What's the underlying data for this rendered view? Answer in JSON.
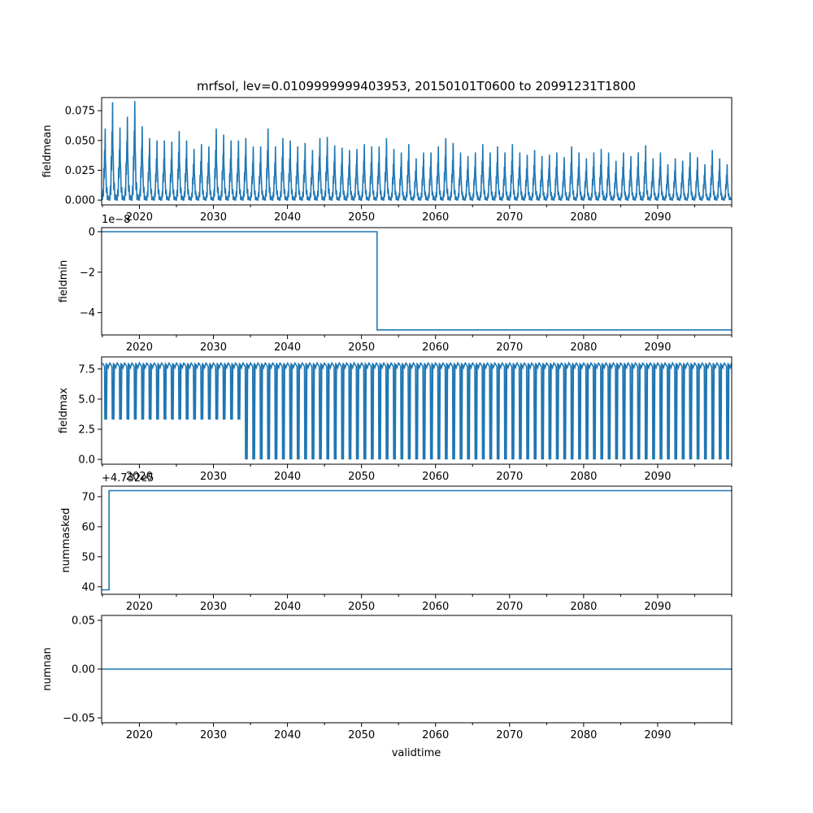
{
  "figure": {
    "title": "mrfsol, lev=0.0109999999403953, 20150101T0600 to 20991231T1800",
    "xlabel": "validtime",
    "line_color": "#1f77b4"
  },
  "chart_data": [
    {
      "type": "line",
      "ylabel": "fieldmean",
      "xlim": [
        2014.9,
        2100.0
      ],
      "ylim": [
        -0.004,
        0.086
      ],
      "yticks": [
        0.0,
        0.025,
        0.05,
        0.075
      ],
      "ytick_labels": [
        "0.000",
        "0.025",
        "0.050",
        "0.075"
      ],
      "xticks": [
        2020,
        2030,
        2040,
        2050,
        2060,
        2070,
        2080,
        2090
      ],
      "xtick_labels": [
        "2020",
        "2030",
        "2040",
        "2050",
        "2060",
        "2070",
        "2080",
        "2090"
      ],
      "offset_text": "",
      "series": [
        {
          "pattern": "seasonal-spikes",
          "year_start": 2015,
          "year_end": 2099,
          "baseline": 0.0,
          "peaks": [
            0.06,
            0.082,
            0.061,
            0.07,
            0.083,
            0.062,
            0.052,
            0.05,
            0.05,
            0.049,
            0.058,
            0.05,
            0.043,
            0.047,
            0.045,
            0.06,
            0.055,
            0.05,
            0.05,
            0.052,
            0.045,
            0.045,
            0.06,
            0.045,
            0.052,
            0.05,
            0.045,
            0.048,
            0.042,
            0.052,
            0.053,
            0.046,
            0.044,
            0.042,
            0.043,
            0.047,
            0.045,
            0.045,
            0.052,
            0.043,
            0.04,
            0.047,
            0.035,
            0.04,
            0.04,
            0.045,
            0.052,
            0.048,
            0.04,
            0.037,
            0.04,
            0.047,
            0.04,
            0.045,
            0.04,
            0.047,
            0.04,
            0.038,
            0.042,
            0.037,
            0.038,
            0.04,
            0.036,
            0.045,
            0.04,
            0.035,
            0.04,
            0.043,
            0.04,
            0.033,
            0.04,
            0.037,
            0.04,
            0.046,
            0.035,
            0.04,
            0.03,
            0.035,
            0.033,
            0.04,
            0.036,
            0.03,
            0.042,
            0.035,
            0.03
          ]
        }
      ]
    },
    {
      "type": "line",
      "ylabel": "fieldmin",
      "xlim": [
        2014.9,
        2100.0
      ],
      "ylim": [
        -5.1,
        0.2
      ],
      "yticks": [
        0,
        -2,
        -4
      ],
      "ytick_labels": [
        "0",
        "−2",
        "−4"
      ],
      "xticks": [
        2020,
        2030,
        2040,
        2050,
        2060,
        2070,
        2080,
        2090
      ],
      "xtick_labels": [
        "2020",
        "2030",
        "2040",
        "2050",
        "2060",
        "2070",
        "2080",
        "2090"
      ],
      "offset_text": "1e−8",
      "series": [
        {
          "pattern": "step",
          "x": [
            2014.9,
            2052.1,
            2052.1,
            2100.0
          ],
          "y": [
            0.0,
            0.0,
            -4.85,
            -4.85
          ]
        }
      ]
    },
    {
      "type": "line",
      "ylabel": "fieldmax",
      "xlim": [
        2014.9,
        2100.0
      ],
      "ylim": [
        -0.4,
        8.5
      ],
      "yticks": [
        0.0,
        2.5,
        5.0,
        7.5
      ],
      "ytick_labels": [
        "0.0",
        "2.5",
        "5.0",
        "7.5"
      ],
      "xticks": [
        2020,
        2030,
        2040,
        2050,
        2060,
        2070,
        2080,
        2090
      ],
      "xtick_labels": [
        "2020",
        "2030",
        "2040",
        "2050",
        "2060",
        "2070",
        "2080",
        "2090"
      ],
      "offset_text": "",
      "series": [
        {
          "pattern": "oscillation",
          "year_start": 2015,
          "year_end": 2099,
          "high": 8.0,
          "low_before_2034": 3.3,
          "low_after_2034": 0.0,
          "switch_year": 2034
        }
      ]
    },
    {
      "type": "line",
      "ylabel": "nummasked",
      "xlim": [
        2014.9,
        2100.0
      ],
      "ylim": [
        37.5,
        73.5
      ],
      "yticks": [
        40,
        50,
        60,
        70
      ],
      "ytick_labels": [
        "40",
        "50",
        "60",
        "70"
      ],
      "xticks": [
        2020,
        2030,
        2040,
        2050,
        2060,
        2070,
        2080,
        2090
      ],
      "xtick_labels": [
        "2020",
        "2030",
        "2040",
        "2050",
        "2060",
        "2070",
        "2080",
        "2090"
      ],
      "offset_text": "+4.732e5",
      "series": [
        {
          "pattern": "step",
          "x": [
            2014.9,
            2015.9,
            2015.9,
            2100.0
          ],
          "y": [
            39,
            39,
            72,
            72
          ]
        }
      ]
    },
    {
      "type": "line",
      "ylabel": "numnan",
      "xlim": [
        2014.9,
        2100.0
      ],
      "ylim": [
        -0.055,
        0.055
      ],
      "yticks": [
        -0.05,
        0.0,
        0.05
      ],
      "ytick_labels": [
        "−0.05",
        "0.00",
        "0.05"
      ],
      "xticks": [
        2020,
        2030,
        2040,
        2050,
        2060,
        2070,
        2080,
        2090
      ],
      "xtick_labels": [
        "2020",
        "2030",
        "2040",
        "2050",
        "2060",
        "2070",
        "2080",
        "2090"
      ],
      "offset_text": "",
      "series": [
        {
          "pattern": "step",
          "x": [
            2014.9,
            2100.0
          ],
          "y": [
            0.0,
            0.0
          ]
        }
      ]
    }
  ]
}
